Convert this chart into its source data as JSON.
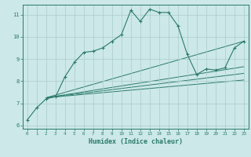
{
  "xlabel": "Humidex (Indice chaleur)",
  "background_color": "#cce8e8",
  "line_color": "#2a7a6a",
  "grid_color": "#aacccc",
  "xlim": [
    -0.5,
    23.5
  ],
  "ylim": [
    5.85,
    11.45
  ],
  "yticks": [
    6,
    7,
    8,
    9,
    10,
    11
  ],
  "xticks": [
    0,
    1,
    2,
    3,
    4,
    5,
    6,
    7,
    8,
    9,
    10,
    11,
    12,
    13,
    14,
    15,
    16,
    17,
    18,
    19,
    20,
    21,
    22,
    23
  ],
  "main_line": {
    "x": [
      0,
      1,
      2,
      3,
      4,
      5,
      6,
      7,
      8,
      9,
      10,
      11,
      12,
      13,
      14,
      15,
      16,
      17,
      18,
      19,
      20,
      21,
      22,
      23
    ],
    "y": [
      6.25,
      6.8,
      7.2,
      7.3,
      8.2,
      8.85,
      9.3,
      9.35,
      9.5,
      9.8,
      10.1,
      11.2,
      10.7,
      11.25,
      11.1,
      11.1,
      10.5,
      9.2,
      8.3,
      8.55,
      8.5,
      8.6,
      9.5,
      9.8
    ]
  },
  "smooth_lines": [
    {
      "x": [
        2,
        23
      ],
      "y": [
        7.25,
        9.8
      ]
    },
    {
      "x": [
        2,
        23
      ],
      "y": [
        7.25,
        8.65
      ]
    },
    {
      "x": [
        2,
        23
      ],
      "y": [
        7.25,
        8.35
      ]
    },
    {
      "x": [
        2,
        23
      ],
      "y": [
        7.25,
        8.05
      ]
    }
  ]
}
